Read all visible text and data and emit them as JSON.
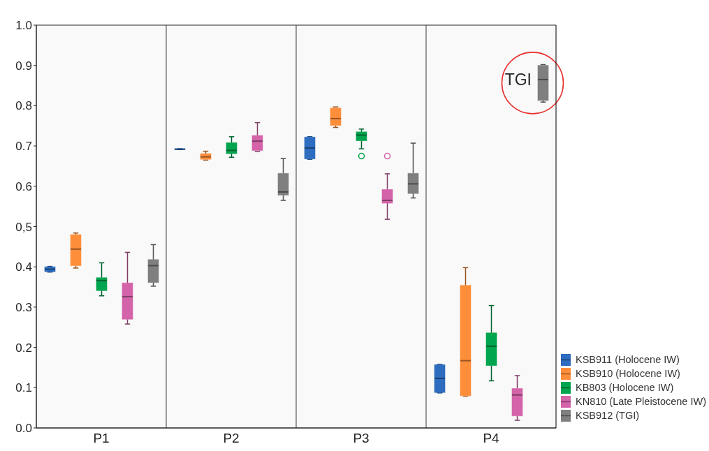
{
  "chart_data": {
    "type": "box",
    "categories": [
      "P1",
      "P2",
      "P3",
      "P4"
    ],
    "series": [
      {
        "name": "KSB911 (Holocene IW)",
        "color": "#2d6cbf",
        "boxes": [
          {
            "low": 0.387,
            "q1": 0.388,
            "median": 0.394,
            "q3": 0.4,
            "high": 0.401
          },
          {
            "low": 0.691,
            "q1": 0.692,
            "median": 0.692,
            "q3": 0.693,
            "high": 0.693
          },
          {
            "low": 0.667,
            "q1": 0.668,
            "median": 0.695,
            "q3": 0.722,
            "high": 0.723
          },
          {
            "low": 0.087,
            "q1": 0.088,
            "median": 0.123,
            "q3": 0.157,
            "high": 0.158
          }
        ]
      },
      {
        "name": "KSB910 (Holocene IW)",
        "color": "#ff8e3a",
        "boxes": [
          {
            "low": 0.397,
            "q1": 0.403,
            "median": 0.444,
            "q3": 0.48,
            "high": 0.484
          },
          {
            "low": 0.665,
            "q1": 0.667,
            "median": 0.673,
            "q3": 0.681,
            "high": 0.687
          },
          {
            "low": 0.746,
            "q1": 0.751,
            "median": 0.768,
            "q3": 0.794,
            "high": 0.797
          },
          {
            "low": 0.079,
            "q1": 0.08,
            "median": 0.167,
            "q3": 0.354,
            "high": 0.398
          }
        ]
      },
      {
        "name": "KB803 (Holocene IW)",
        "color": "#00a54f",
        "boxes": [
          {
            "low": 0.328,
            "q1": 0.341,
            "median": 0.366,
            "q3": 0.373,
            "high": 0.41
          },
          {
            "low": 0.672,
            "q1": 0.681,
            "median": 0.689,
            "q3": 0.708,
            "high": 0.723
          },
          {
            "low": 0.693,
            "q1": 0.713,
            "median": 0.727,
            "q3": 0.735,
            "high": 0.742,
            "outliers": [
              0.675
            ]
          },
          {
            "low": 0.117,
            "q1": 0.155,
            "median": 0.203,
            "q3": 0.236,
            "high": 0.304
          }
        ]
      },
      {
        "name": "KN810 (Late Pleistocene IW)",
        "color": "#d464a9",
        "boxes": [
          {
            "low": 0.258,
            "q1": 0.27,
            "median": 0.326,
            "q3": 0.36,
            "high": 0.436
          },
          {
            "low": 0.686,
            "q1": 0.689,
            "median": 0.712,
            "q3": 0.726,
            "high": 0.758
          },
          {
            "low": 0.518,
            "q1": 0.558,
            "median": 0.565,
            "q3": 0.592,
            "high": 0.631,
            "outliers": [
              0.675
            ]
          },
          {
            "low": 0.019,
            "q1": 0.03,
            "median": 0.082,
            "q3": 0.098,
            "high": 0.13
          }
        ]
      },
      {
        "name": "KSB912 (TGI)",
        "color": "#7f7f7f",
        "boxes": [
          {
            "low": 0.352,
            "q1": 0.361,
            "median": 0.403,
            "q3": 0.418,
            "high": 0.455
          },
          {
            "low": 0.565,
            "q1": 0.578,
            "median": 0.586,
            "q3": 0.632,
            "high": 0.669
          },
          {
            "low": 0.571,
            "q1": 0.582,
            "median": 0.606,
            "q3": 0.632,
            "high": 0.707
          },
          {
            "low": 0.809,
            "q1": 0.813,
            "median": 0.865,
            "q3": 0.9,
            "high": 0.902
          }
        ]
      }
    ],
    "ylim": [
      0,
      1
    ],
    "yticks": [
      {
        "value": 0,
        "label": "0.0"
      },
      0.1,
      0.2,
      0.3,
      0.4,
      {
        "value": 0.5,
        "label": "0,5"
      },
      0.6,
      0.7,
      0.8,
      0.9,
      {
        "value": 1,
        "label": "1.0"
      }
    ],
    "grid": "x",
    "legend": "bottom right",
    "annotations": [
      "TGI"
    ]
  }
}
